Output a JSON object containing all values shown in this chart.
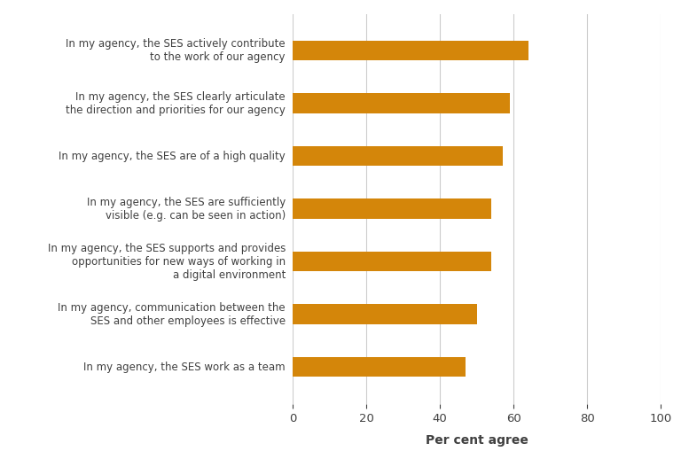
{
  "categories": [
    "In my agency, the SES actively contribute\nto the work of our agency",
    "In my agency, the SES clearly articulate\nthe direction and priorities for our agency",
    "In my agency, the SES are of a high quality",
    "In my agency, the SES are sufficiently\nvisible (e.g. can be seen in action)",
    "In my agency, the SES supports and provides\nopportunities for new ways of working in\na digital environment",
    "In my agency, communication between the\nSES and other employees is effective",
    "In my agency, the SES work as a team"
  ],
  "values": [
    64,
    59,
    57,
    54,
    54,
    50,
    47
  ],
  "bar_color": "#D4860A",
  "xlabel": "Per cent agree",
  "xlim": [
    0,
    100
  ],
  "xticks": [
    0,
    20,
    40,
    60,
    80,
    100
  ],
  "background_color": "#ffffff",
  "label_fontsize": 8.5,
  "xlabel_fontsize": 10,
  "tick_fontsize": 9.5,
  "bar_height": 0.38,
  "grid_color": "#cccccc",
  "text_color": "#404040"
}
